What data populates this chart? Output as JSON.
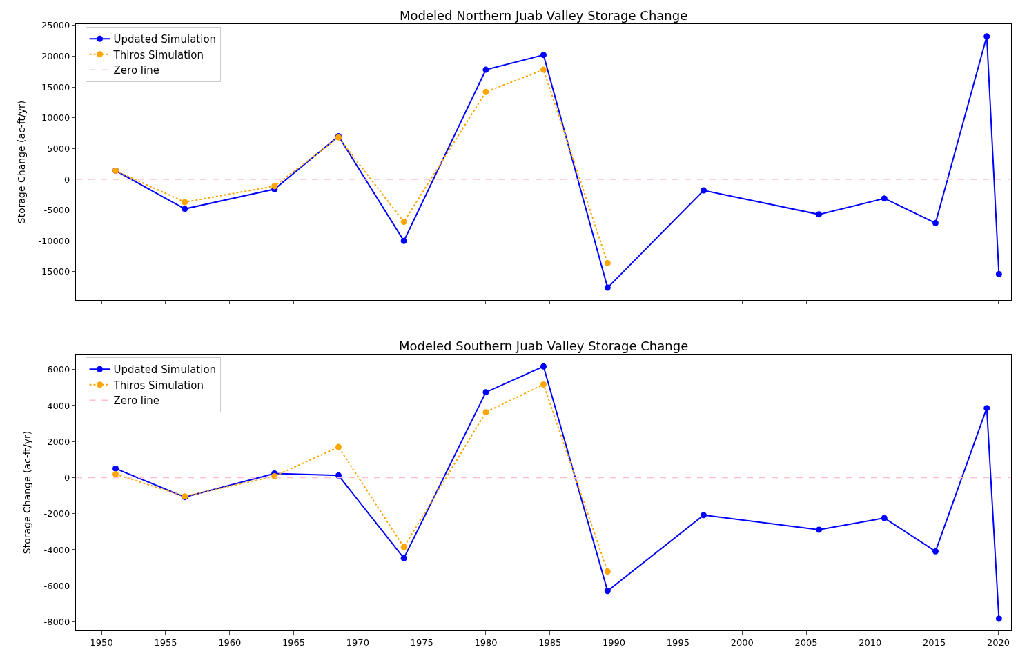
{
  "chart_data": [
    {
      "type": "line",
      "title": "Modeled Northern Juab Valley Storage Change",
      "ylabel": "Storage Change (ac-ft/yr)",
      "x": [
        1951.1,
        1956.5,
        1963.5,
        1968.5,
        1973.6,
        1980,
        1984.5,
        1989.5,
        1997,
        2006,
        2011.1,
        2015.1,
        2019.1,
        2020.05
      ],
      "series": [
        {
          "name": "Updated Simulation",
          "color": "#0000ff",
          "line_style": "solid",
          "values": [
            1400,
            -4800,
            -1600,
            7000,
            -10000,
            17800,
            20200,
            -17600,
            -1800,
            -5700,
            -3100,
            -7100,
            23200,
            -15400
          ]
        },
        {
          "name": "Thiros Simulation",
          "color": "#ffa500",
          "line_style": "dotted",
          "values": [
            1400,
            -3700,
            -1100,
            6800,
            -6900,
            14200,
            17800,
            -13600,
            null,
            null,
            null,
            null,
            null,
            null
          ]
        }
      ],
      "ref_lines": [
        {
          "axis": "y",
          "value": 0,
          "label": "Zero line",
          "color": "#ffc0cb",
          "line_style": "dashed"
        }
      ],
      "xlim": [
        1948,
        2021
      ],
      "xticks": [
        {
          "value": 1950,
          "label": null
        },
        {
          "value": 1955,
          "label": null
        },
        {
          "value": 1960,
          "label": null
        },
        {
          "value": 1965,
          "label": null
        },
        {
          "value": 1970,
          "label": null
        },
        {
          "value": 1975,
          "label": null
        },
        {
          "value": 1980,
          "label": null
        },
        {
          "value": 1985,
          "label": null
        },
        {
          "value": 1990,
          "label": null
        },
        {
          "value": 1995,
          "label": null
        },
        {
          "value": 2000,
          "label": null
        },
        {
          "value": 2005,
          "label": null
        },
        {
          "value": 2010,
          "label": null
        },
        {
          "value": 2015,
          "label": null
        },
        {
          "value": 2020,
          "label": null
        }
      ],
      "ylim": [
        -19600,
        25200
      ],
      "yticks": [
        -15000,
        -10000,
        -5000,
        0,
        5000,
        10000,
        15000,
        20000,
        25000
      ],
      "tick_labels": "y",
      "legend": "top left",
      "marker": "circle"
    },
    {
      "type": "line",
      "title": "Modeled Southern Juab Valley Storage Change",
      "ylabel": "Storage Change (ac-ft/yr)",
      "x": [
        1951.1,
        1956.5,
        1963.5,
        1968.5,
        1973.6,
        1980,
        1984.5,
        1989.5,
        1997,
        2006,
        2011.1,
        2015.1,
        2019.1,
        2020.05
      ],
      "series": [
        {
          "name": "Updated Simulation",
          "color": "#0000ff",
          "line_style": "solid",
          "values": [
            500,
            -1080,
            230,
            120,
            -4470,
            4740,
            6170,
            -6290,
            -2080,
            -2890,
            -2240,
            -4090,
            3860,
            -7830
          ]
        },
        {
          "name": "Thiros Simulation",
          "color": "#ffa500",
          "line_style": "dotted",
          "values": [
            190,
            -1040,
            80,
            1700,
            -3860,
            3630,
            5170,
            -5210,
            null,
            null,
            null,
            null,
            null,
            null
          ]
        }
      ],
      "ref_lines": [
        {
          "axis": "y",
          "value": 0,
          "label": "Zero line",
          "color": "#ffc0cb",
          "line_style": "dashed"
        }
      ],
      "xlim": [
        1948,
        2021
      ],
      "xticks": [
        1950,
        1955,
        1960,
        1965,
        1970,
        1975,
        1980,
        1985,
        1990,
        1995,
        2000,
        2005,
        2010,
        2015,
        2020
      ],
      "ylim": [
        -8480,
        6830
      ],
      "yticks": [
        -8000,
        -6000,
        -4000,
        -2000,
        0,
        2000,
        4000,
        6000
      ],
      "legend": "top left",
      "marker": "circle"
    }
  ]
}
